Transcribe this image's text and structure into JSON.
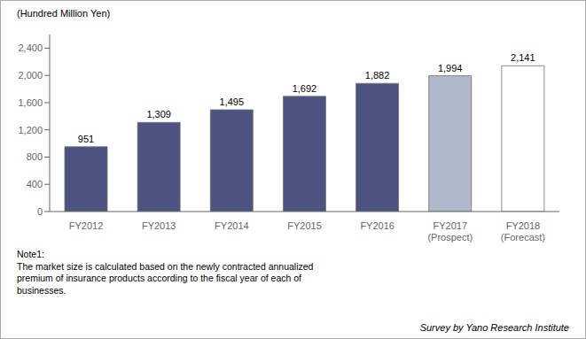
{
  "chart_data": {
    "type": "bar",
    "ylabel": "(Hundred Million Yen)",
    "categories": [
      "FY2012",
      "FY2013",
      "FY2014",
      "FY2015",
      "FY2016",
      "FY2017\n(Prospect)",
      "FY2018\n(Forecast)"
    ],
    "values": [
      951,
      1309,
      1495,
      1692,
      1882,
      1994,
      2141
    ],
    "value_labels": [
      "951",
      "1,309",
      "1,495",
      "1,692",
      "1,882",
      "1,994",
      "2,141"
    ],
    "data_labels": true,
    "colors": [
      "#4d5380",
      "#4d5380",
      "#4d5380",
      "#4d5380",
      "#4d5380",
      "#b0b8cc",
      "#ffffff"
    ],
    "ylim": [
      0,
      2600
    ],
    "yticks": [
      0,
      400,
      800,
      {
        "value": 1200,
        "label": "1,200"
      },
      {
        "value": 1600,
        "label": "1,600"
      },
      {
        "value": 2000,
        "label": "2,000"
      },
      {
        "value": 2400,
        "label": "2,400"
      }
    ],
    "annotations": [
      "Note1:",
      "The market size is calculated based on the newly contracted annualized",
      "premium of insurance products according to the fiscal year of each of",
      "businesses."
    ],
    "source": "Survey by Yano Research Institute"
  }
}
